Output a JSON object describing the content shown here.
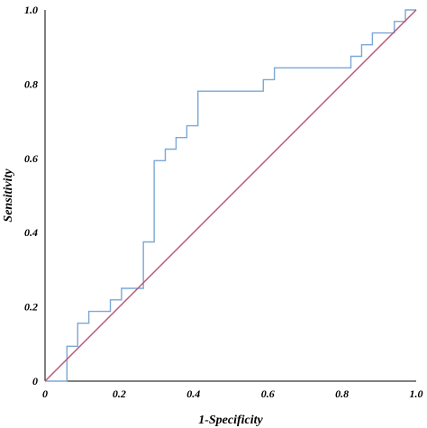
{
  "chart_data": {
    "type": "line",
    "title": "",
    "xlabel": "1-Specificity",
    "ylabel": "Sensitivity",
    "xlim": [
      0,
      1
    ],
    "ylim": [
      0,
      1
    ],
    "x_ticks": [
      "0",
      "0.2",
      "0.4",
      "0.6",
      "0.8",
      "1.0"
    ],
    "y_ticks": [
      "0",
      "0.2",
      "0.4",
      "0.6",
      "0.8",
      "1.0"
    ],
    "grid": false,
    "legend": "none",
    "series": [
      {
        "color": "#7ba7d6",
        "step": true,
        "x": [
          0,
          0.059,
          0.059,
          0.088,
          0.088,
          0.118,
          0.118,
          0.176,
          0.176,
          0.206,
          0.206,
          0.265,
          0.265,
          0.294,
          0.294,
          0.324,
          0.324,
          0.353,
          0.353,
          0.382,
          0.382,
          0.412,
          0.412,
          0.588,
          0.588,
          0.618,
          0.618,
          0.824,
          0.824,
          0.853,
          0.853,
          0.882,
          0.882,
          0.941,
          0.941,
          0.971,
          0.971,
          1.0
        ],
        "y": [
          0,
          0,
          0.094,
          0.094,
          0.156,
          0.156,
          0.188,
          0.188,
          0.219,
          0.219,
          0.25,
          0.25,
          0.375,
          0.375,
          0.594,
          0.594,
          0.625,
          0.625,
          0.656,
          0.656,
          0.688,
          0.688,
          0.781,
          0.781,
          0.812,
          0.812,
          0.844,
          0.844,
          0.875,
          0.875,
          0.906,
          0.906,
          0.938,
          0.938,
          0.969,
          0.969,
          1.0,
          1.0
        ]
      },
      {
        "color": "#c0506e",
        "x": [
          0,
          1
        ],
        "y": [
          0,
          1
        ]
      }
    ]
  }
}
